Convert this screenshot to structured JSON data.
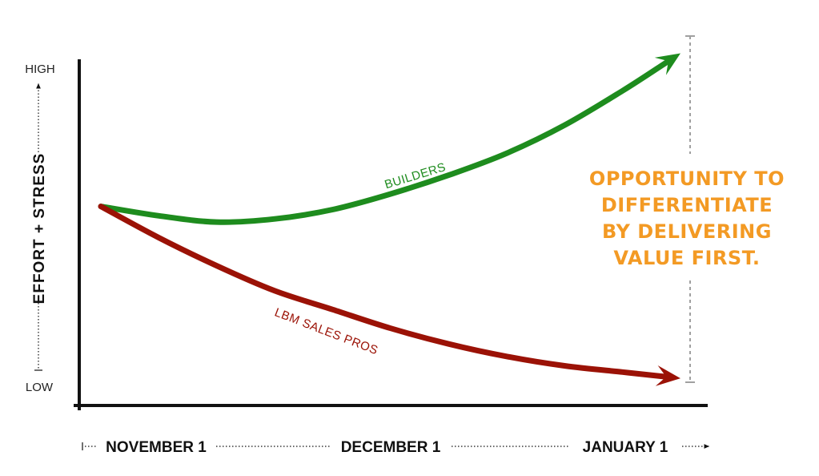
{
  "chart_data": {
    "type": "line",
    "title": "",
    "y_axis": {
      "title": "EFFORT + STRESS",
      "low_label": "LOW",
      "high_label": "HIGH"
    },
    "x_axis": {
      "ticks": [
        "NOVEMBER 1",
        "DECEMBER 1",
        "JANUARY 1"
      ]
    },
    "series": [
      {
        "name": "BUILDERS",
        "color": "#1e8c1e",
        "x": [
          0,
          0.1,
          0.2,
          0.3,
          0.4,
          0.5,
          0.6,
          0.7,
          0.8,
          0.9,
          1.0
        ],
        "y": [
          0.56,
          0.53,
          0.51,
          0.52,
          0.55,
          0.6,
          0.66,
          0.73,
          0.82,
          0.93,
          1.05
        ]
      },
      {
        "name": "LBM SALES PROS",
        "color": "#9b1206",
        "x": [
          0,
          0.1,
          0.2,
          0.3,
          0.4,
          0.5,
          0.6,
          0.7,
          0.8,
          0.9,
          1.0
        ],
        "y": [
          0.56,
          0.46,
          0.37,
          0.29,
          0.23,
          0.17,
          0.12,
          0.08,
          0.05,
          0.03,
          0.01
        ]
      }
    ],
    "annotation": {
      "lines": [
        "OPPORTUNITY TO",
        "DIFFERENTIATE",
        "BY DELIVERING",
        "VALUE FIRST."
      ],
      "color": "#f39a24",
      "bracket_color": "#a0a0a0"
    },
    "axis_color": "#111111"
  }
}
